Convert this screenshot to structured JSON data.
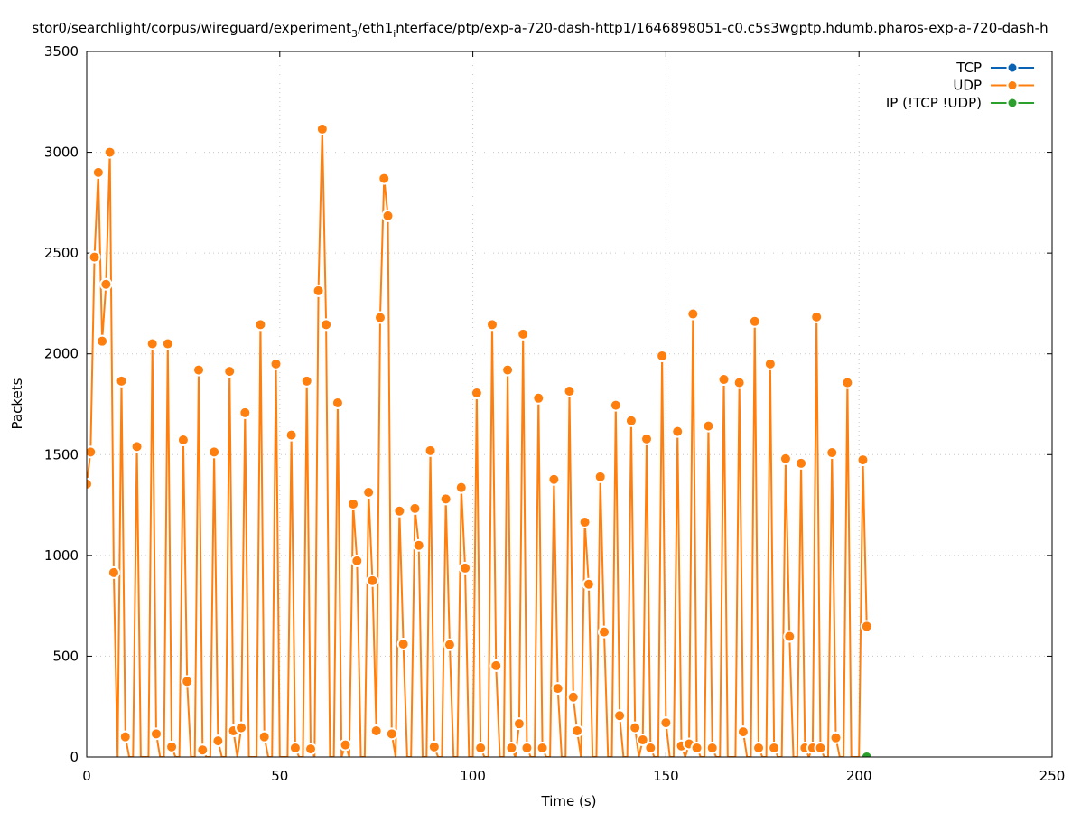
{
  "chart_data": {
    "type": "line",
    "title_parts": [
      "stor0/searchlight/corpus/wireguard/experiment",
      "3",
      "/eth1",
      "i",
      "nterface/ptp/exp-a-720-dash-http1/1646898051-c0.c5s3wgptp.hdumb.pharos-exp-a-720-dash-h"
    ],
    "xlabel": "Time (s)",
    "ylabel": "Packets",
    "xlim": [
      0,
      250
    ],
    "ylim": [
      0,
      3500
    ],
    "xticks": [
      0,
      50,
      100,
      150,
      200,
      250
    ],
    "yticks": [
      0,
      500,
      1000,
      1500,
      2000,
      2500,
      3000,
      3500
    ],
    "grid": true,
    "legend_position": "top-right",
    "series": [
      {
        "name": "TCP",
        "color": "#0a62b4",
        "x_start": 0,
        "x_step": 1,
        "values": []
      },
      {
        "name": "UDP",
        "color": "#ff7f0e",
        "x_start": 0,
        "x_step": 1,
        "values": [
          1354,
          1513,
          2480,
          2900,
          2063,
          2345,
          3000,
          915,
          0,
          1865,
          100,
          0,
          0,
          1540,
          0,
          0,
          0,
          2050,
          115,
          0,
          0,
          2050,
          50,
          0,
          0,
          1573,
          375,
          0,
          0,
          1920,
          35,
          0,
          0,
          1513,
          80,
          0,
          0,
          1913,
          130,
          0,
          145,
          1708,
          0,
          0,
          0,
          2145,
          100,
          0,
          0,
          1950,
          0,
          0,
          0,
          1597,
          45,
          0,
          0,
          1865,
          40,
          0,
          2313,
          3115,
          2145,
          0,
          0,
          1757,
          0,
          60,
          0,
          1255,
          973,
          0,
          0,
          1313,
          875,
          130,
          2180,
          2870,
          2685,
          115,
          0,
          1220,
          560,
          0,
          0,
          1233,
          1050,
          0,
          0,
          1520,
          50,
          0,
          0,
          1280,
          557,
          0,
          0,
          1337,
          937,
          0,
          0,
          1806,
          45,
          0,
          0,
          2145,
          453,
          0,
          0,
          1920,
          45,
          0,
          165,
          2098,
          45,
          0,
          0,
          1780,
          45,
          0,
          0,
          1377,
          340,
          0,
          0,
          1815,
          297,
          130,
          0,
          1165,
          857,
          0,
          0,
          1390,
          620,
          0,
          0,
          1745,
          205,
          0,
          0,
          1668,
          145,
          0,
          85,
          1578,
          45,
          0,
          0,
          1990,
          170,
          0,
          0,
          1615,
          55,
          0,
          65,
          2198,
          45,
          0,
          0,
          1642,
          45,
          0,
          0,
          1873,
          0,
          0,
          0,
          1857,
          125,
          0,
          0,
          2161,
          45,
          0,
          0,
          1950,
          45,
          0,
          0,
          1480,
          598,
          0,
          0,
          1457,
          45,
          0,
          45,
          2183,
          45,
          0,
          0,
          1510,
          95,
          0,
          0,
          1857,
          0,
          0,
          0,
          1474,
          648
        ]
      },
      {
        "name": "IP (!TCP  !UDP)",
        "color": "#2ca02c",
        "points": [
          [
            202,
            0
          ]
        ]
      }
    ]
  }
}
